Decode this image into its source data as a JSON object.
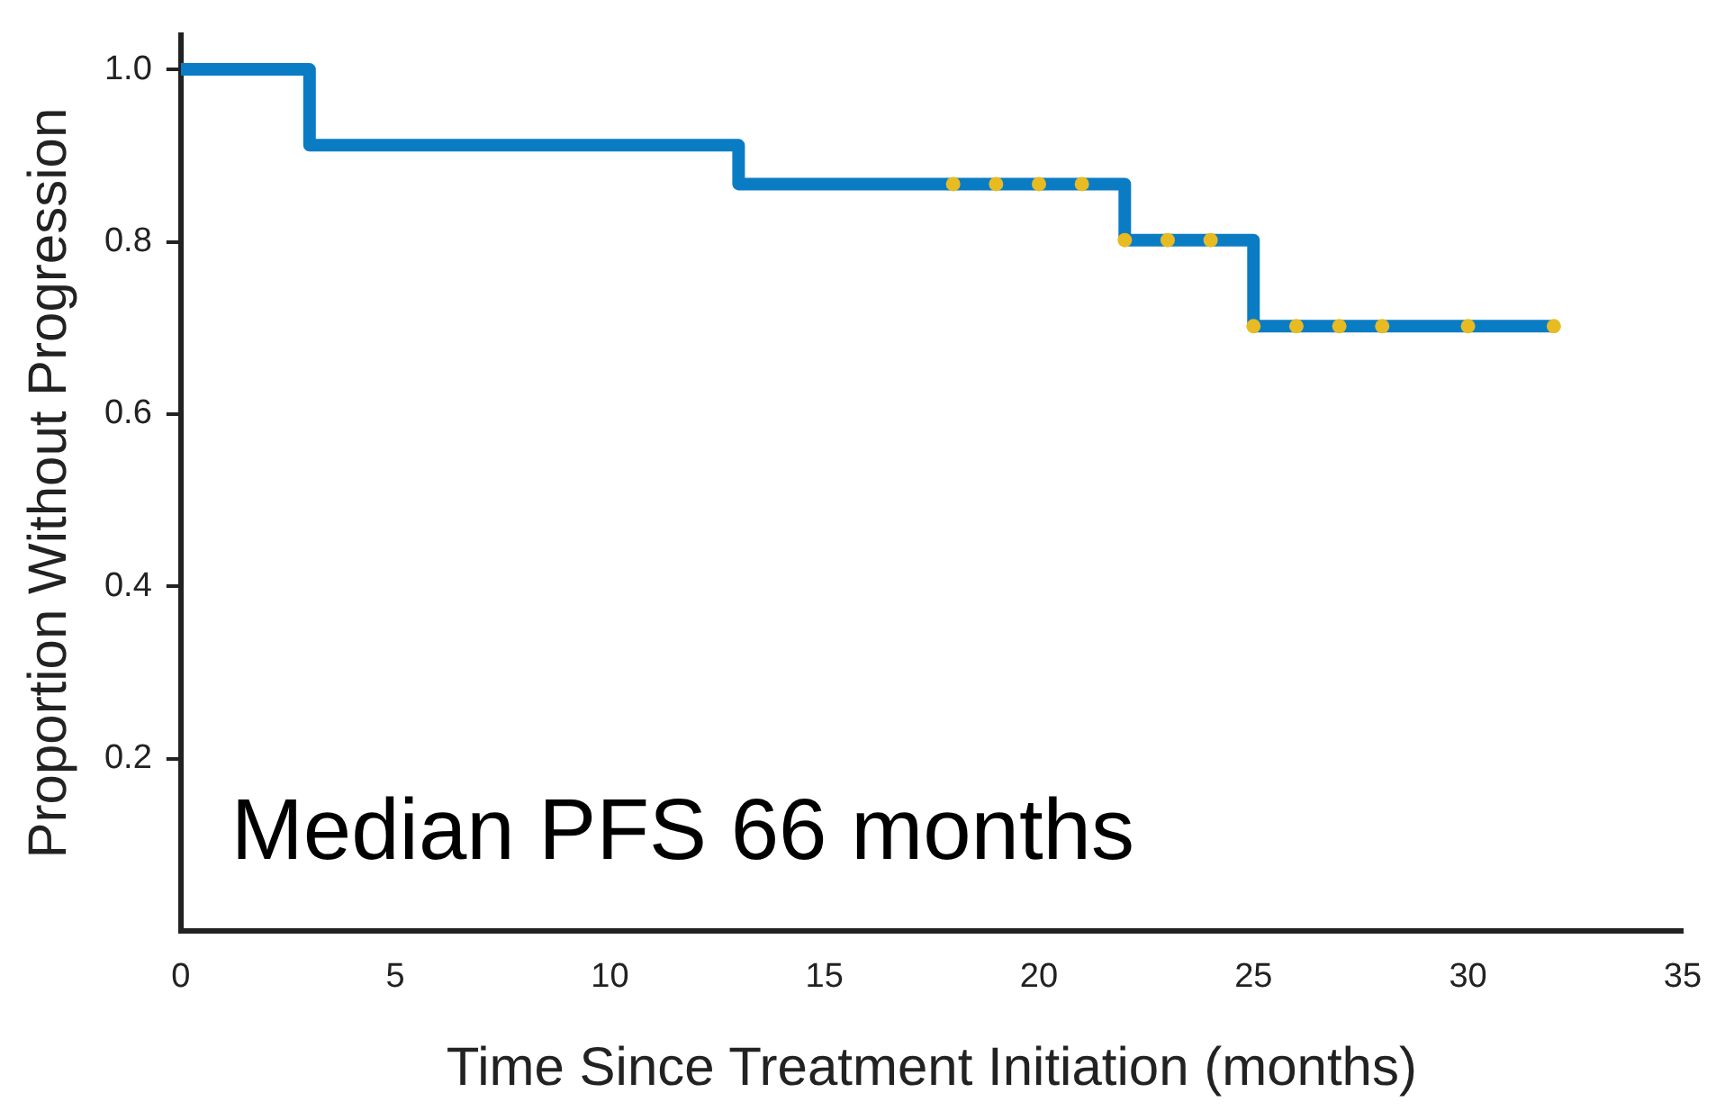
{
  "chart_data": {
    "type": "step",
    "xlabel": "Time Since Treatment Initiation (months)",
    "ylabel": "Proportion Without Progression",
    "annotations": [
      "Median PFS 66 months"
    ],
    "xlim": [
      0,
      35
    ],
    "xticks": [
      0,
      5,
      10,
      15,
      20,
      25,
      30,
      35
    ],
    "ylim": [
      0,
      1.04
    ],
    "yticks": [
      0.2,
      0.4,
      0.6,
      0.8,
      {
        "value": 1,
        "label": "1.0"
      }
    ],
    "grid": false,
    "legend": false,
    "series": [
      {
        "color": "#0a7cc4",
        "x": [
          0,
          3,
          13,
          22,
          25,
          32
        ],
        "values": [
          1,
          0.912,
          0.867,
          0.802,
          0.702,
          0.702
        ]
      },
      {
        "type": "scatter",
        "color": "#e8bb22",
        "x": [
          18,
          19,
          20,
          21,
          22,
          23,
          24,
          25,
          26,
          27,
          28,
          30,
          32
        ],
        "values": [
          0.867,
          0.867,
          0.867,
          0.867,
          0.802,
          0.802,
          0.802,
          0.702,
          0.702,
          0.702,
          0.702,
          0.702,
          0.702
        ]
      }
    ]
  }
}
